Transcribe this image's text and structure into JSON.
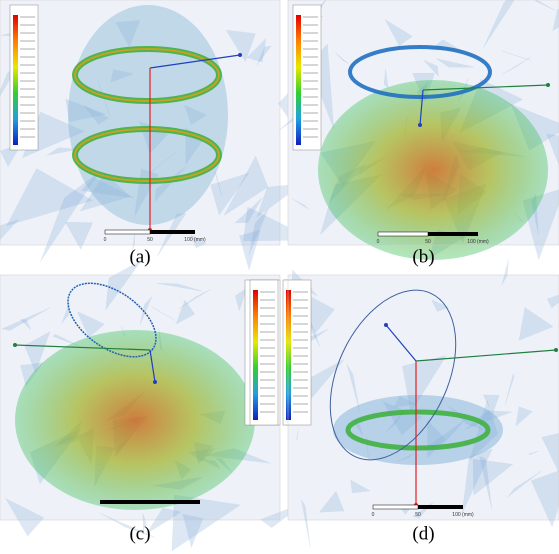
{
  "panels": [
    {
      "caption": "(a)",
      "scale": [
        "0",
        "50",
        "100 (mm)"
      ]
    },
    {
      "caption": "(b)",
      "scale": [
        "0",
        "50",
        "100 (mm)"
      ]
    },
    {
      "caption": "(c)",
      "scale": []
    },
    {
      "caption": "(d)",
      "scale": [
        "0",
        "50",
        "100 (mm)"
      ]
    }
  ]
}
